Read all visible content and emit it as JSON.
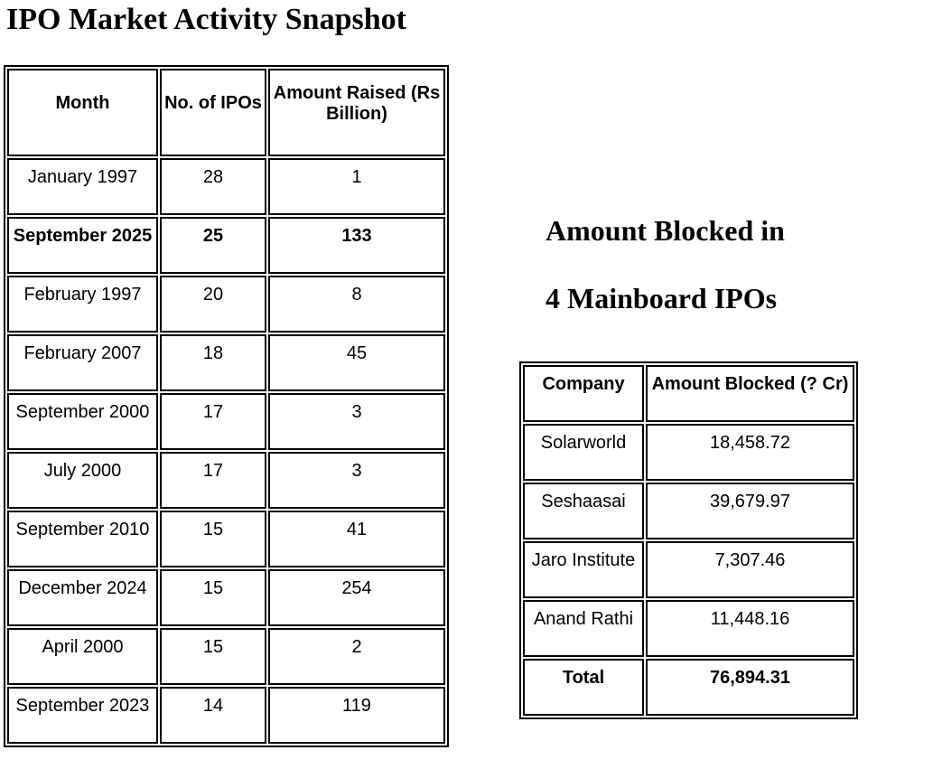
{
  "page_title": "IPO Market Activity Snapshot",
  "ipo_table": {
    "headers": [
      "Month",
      "No. of IPOs",
      "Amount Raised (Rs Billion)"
    ],
    "rows": [
      {
        "month": "January 1997",
        "ipos": "28",
        "amount": "1"
      },
      {
        "month": "September 2025",
        "ipos": "25",
        "amount": "133"
      },
      {
        "month": "February 1997",
        "ipos": "20",
        "amount": "8"
      },
      {
        "month": "February 2007",
        "ipos": "18",
        "amount": "45"
      },
      {
        "month": "September 2000",
        "ipos": "17",
        "amount": "3"
      },
      {
        "month": "July 2000",
        "ipos": "17",
        "amount": "3"
      },
      {
        "month": "September 2010",
        "ipos": "15",
        "amount": "41"
      },
      {
        "month": "December 2024",
        "ipos": "15",
        "amount": "254"
      },
      {
        "month": "April 2000",
        "ipos": "15",
        "amount": "2"
      },
      {
        "month": "September 2023",
        "ipos": "14",
        "amount": "119"
      }
    ]
  },
  "blocked_section": {
    "title_line1": "Amount Blocked in",
    "title_line2": "4 Mainboard IPOs",
    "headers": [
      "Company",
      "Amount Blocked (? Cr)"
    ],
    "rows": [
      {
        "company": "Solarworld",
        "amount": "18,458.72"
      },
      {
        "company": "Seshaasai",
        "amount": "39,679.97"
      },
      {
        "company": "Jaro Institute",
        "amount": "7,307.46"
      },
      {
        "company": "Anand Rathi",
        "amount": "11,448.16"
      },
      {
        "company": "Total",
        "amount": "76,894.31"
      }
    ]
  },
  "colors": {
    "text": "#000000",
    "border": "#000000",
    "background": "#ffffff"
  }
}
